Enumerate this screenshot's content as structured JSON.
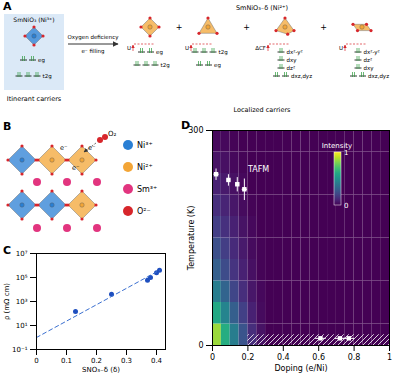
{
  "diagram_a": {
    "label": "A",
    "left": {
      "title": "SmNiO₃ (Ni³⁺)",
      "levels": [
        "eg",
        "t2g"
      ],
      "caption": "Itinerant carriers"
    },
    "arrow": {
      "above": "Oxygen deficiency",
      "below": "e⁻ filling"
    },
    "right": {
      "title": "SmNiO₃₋δ (Ni²⁺)",
      "join": "+",
      "caption": "Localized carriers",
      "items": [
        {
          "shape": "octahedron",
          "levels": [
            "U",
            "eg",
            "t2g"
          ]
        },
        {
          "shape": "tetrahedron",
          "levels": [
            "U",
            "t2g",
            "eg"
          ]
        },
        {
          "shape": "pyramid",
          "levels": [
            "ΔCF",
            "dx²-y²",
            "dxy",
            "dz²",
            "dxz,dyz"
          ]
        },
        {
          "shape": "planar",
          "levels": [
            "U",
            "dx²-y²",
            "dz²",
            "dxy",
            "dxz,dyz"
          ]
        }
      ]
    }
  },
  "diagram_b": {
    "label": "B",
    "molecule": "O₂",
    "electrons": [
      "e⁻",
      "e⁻",
      "e⁻"
    ],
    "legend": [
      {
        "label": "Ni³⁺",
        "color": "#2a7fd4"
      },
      {
        "label": "Ni²⁺",
        "color": "#f3a536"
      },
      {
        "label": "Sm³⁺",
        "color": "#e2357f"
      },
      {
        "label": "O²⁻",
        "color": "#d7262b"
      }
    ]
  },
  "chart_data": [
    {
      "type": "scatter",
      "label": "C",
      "xlabel": "SNO₃₋δ (δ)",
      "ylabel": "ρ (mΩ cm)",
      "log": "y",
      "xlim": [
        0,
        0.43
      ],
      "ylim": [
        0.1,
        10000000
      ],
      "xticks": [
        0,
        0.1,
        0.2,
        0.3,
        0.4
      ],
      "yticks": [
        {
          "value": 0.1,
          "label": "10⁻¹"
        },
        {
          "value": 10,
          "label": "10¹"
        },
        {
          "value": 1000,
          "label": "10³"
        },
        {
          "value": 100000,
          "label": "10⁵"
        },
        {
          "value": 10000000,
          "label": "10⁷"
        }
      ],
      "series": [
        {
          "type": "scatter",
          "marker": "circle",
          "color": "#1f4fbf",
          "x": [
            0.13,
            0.25,
            0.37,
            0.38,
            0.4,
            0.41
          ],
          "values": [
            150,
            4000,
            60000,
            100000,
            250000,
            400000
          ]
        },
        {
          "type": "line",
          "line_style": "dashed",
          "color": "#3a6fd0",
          "x": [
            0,
            0.41
          ],
          "values": [
            1,
            400000
          ]
        }
      ]
    },
    {
      "type": "heatmap",
      "label": "D",
      "xlabel": "Doping (e/Ni)",
      "ylabel": "Temperature (K)",
      "xlim": [
        0,
        1
      ],
      "ylim": [
        0,
        300
      ],
      "xticks": [
        0,
        0.2,
        0.4,
        0.6,
        0.8,
        1
      ],
      "yticks": [
        0,
        300
      ],
      "x_bins": [
        0,
        0.05,
        0.1,
        0.15,
        0.2,
        0.25,
        0.3,
        0.35,
        0.4,
        0.45,
        0.5,
        0.55,
        0.6,
        0.65,
        0.7,
        0.75,
        0.8,
        0.85,
        0.9,
        0.95,
        1
      ],
      "y_bins": [
        0,
        30,
        60,
        90,
        120,
        150,
        180,
        210,
        240,
        270,
        300
      ],
      "cells": [
        [
          0.85,
          0.62,
          0.42,
          0.26,
          0.13,
          0.05,
          0,
          0,
          0,
          0,
          0,
          0,
          0,
          0,
          0,
          0,
          0,
          0,
          0,
          0
        ],
        [
          0.6,
          0.45,
          0.3,
          0.19,
          0.09,
          0.03,
          0,
          0,
          0,
          0,
          0,
          0,
          0,
          0,
          0,
          0,
          0,
          0,
          0,
          0
        ],
        [
          0.42,
          0.32,
          0.21,
          0.13,
          0.06,
          0.02,
          0,
          0,
          0,
          0,
          0,
          0,
          0,
          0,
          0,
          0,
          0,
          0,
          0,
          0
        ],
        [
          0.3,
          0.23,
          0.15,
          0.09,
          0.04,
          0.01,
          0,
          0,
          0,
          0,
          0,
          0,
          0,
          0,
          0,
          0,
          0,
          0,
          0,
          0
        ],
        [
          0.24,
          0.18,
          0.12,
          0.07,
          0.03,
          0.01,
          0,
          0,
          0,
          0,
          0,
          0,
          0,
          0,
          0,
          0,
          0,
          0,
          0,
          0
        ],
        [
          0.18,
          0.14,
          0.09,
          0.05,
          0.02,
          0,
          0,
          0,
          0,
          0,
          0,
          0,
          0,
          0,
          0,
          0,
          0,
          0,
          0,
          0
        ],
        [
          0.13,
          0.1,
          0.06,
          0.03,
          0.01,
          0,
          0,
          0,
          0,
          0,
          0,
          0,
          0,
          0,
          0,
          0,
          0,
          0,
          0,
          0
        ],
        [
          0.09,
          0.07,
          0.04,
          0.02,
          0,
          0,
          0,
          0,
          0,
          0,
          0,
          0,
          0,
          0,
          0,
          0,
          0,
          0,
          0,
          0
        ],
        [
          0.05,
          0.04,
          0.02,
          0.01,
          0,
          0,
          0,
          0,
          0,
          0,
          0,
          0,
          0,
          0,
          0,
          0,
          0,
          0,
          0,
          0
        ],
        [
          0.02,
          0.02,
          0.01,
          0,
          0,
          0,
          0,
          0,
          0,
          0,
          0,
          0,
          0,
          0,
          0,
          0,
          0,
          0,
          0,
          0
        ]
      ],
      "colorbar": {
        "title": "Intensity",
        "range": [
          0,
          1
        ],
        "ticks": [
          0,
          1
        ]
      },
      "hatch": {
        "x": [
          0.2,
          1
        ],
        "y": [
          0,
          15
        ]
      },
      "points": {
        "color": "#ffffff",
        "marker": "square",
        "x": [
          0.02,
          0.09,
          0.14,
          0.18,
          0.61,
          0.72,
          0.77
        ],
        "values": [
          239,
          231,
          225,
          218,
          10,
          10,
          10
        ],
        "xerr": [
          0.015,
          0.01,
          0.01,
          0.015,
          0.03,
          0.03,
          0.03
        ],
        "yerr": [
          8,
          8,
          10,
          15,
          0,
          0,
          0
        ]
      },
      "annotations": [
        {
          "text": "TAFM",
          "x": 0.2,
          "y": 245
        }
      ]
    }
  ]
}
